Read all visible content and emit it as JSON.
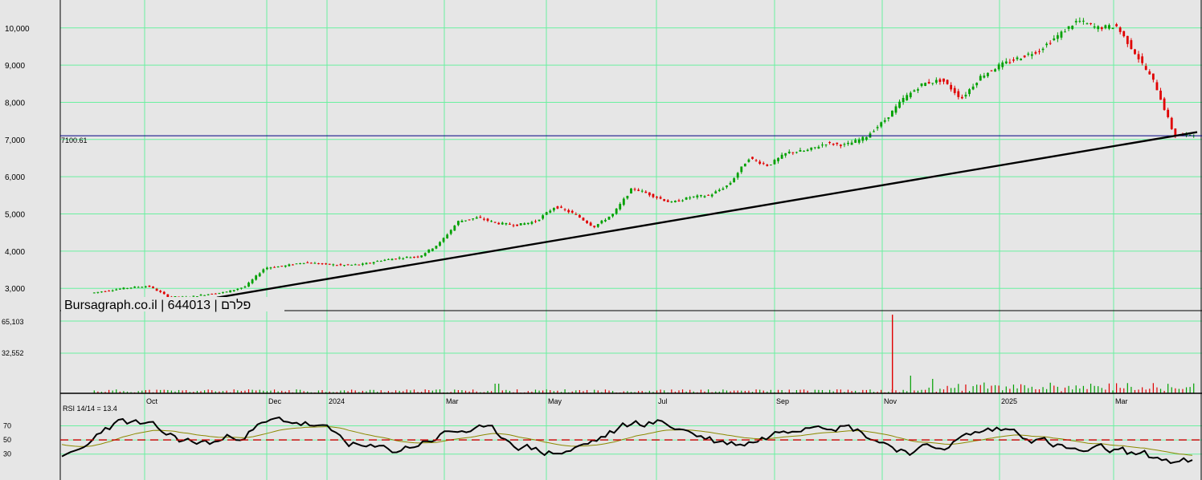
{
  "watermark": "Bursagraph.co.il | 644013 | פלרם",
  "price_panel": {
    "y_ticks": [
      "10,000",
      "9,000",
      "8,000",
      "7,000",
      "6,000",
      "5,000",
      "4,000",
      "3,000"
    ],
    "y_values": [
      10000,
      9000,
      8000,
      7000,
      6000,
      5000,
      4000,
      3000
    ],
    "hline_label": "7100.61",
    "hline_value": 7100.61
  },
  "volume_panel": {
    "y_ticks": [
      "65,103",
      "32,552"
    ],
    "y_values": [
      65103,
      32552
    ]
  },
  "x_axis": {
    "labels": [
      "Oct",
      "Dec",
      "2024",
      "Mar",
      "May",
      "Jul",
      "Sep",
      "Nov",
      "2025",
      "Mar"
    ]
  },
  "rsi_panel": {
    "title": "RSI 14/14 = 13.4",
    "y_ticks": [
      "70",
      "50",
      "30"
    ],
    "y_values": [
      70,
      50,
      30
    ],
    "signal_level": 50
  },
  "colors": {
    "background": "#e6e6e6",
    "grid": "#6af0a0",
    "up": "#00a000",
    "down": "#e00000",
    "hline": "#000080",
    "trendline": "#000000",
    "rsi": "#000000",
    "rsi_signal": "#8a8a00",
    "rsi_level": "#cc0000"
  },
  "chart_data": {
    "type": "line",
    "series": [
      {
        "values": [
          2870,
          2950,
          3020,
          3060,
          2780,
          2760,
          2840,
          2900,
          3050,
          3550,
          3600,
          3700,
          3650,
          3620,
          3640,
          3750,
          3820,
          3860,
          4200,
          4800,
          4900,
          4750,
          4700,
          4800,
          5200,
          5000,
          4650,
          5000,
          5700,
          5500,
          5300,
          5450,
          5500,
          5800,
          6500,
          6300,
          6650,
          6700,
          6900,
          6850,
          7050,
          7500,
          8100,
          8500,
          8600,
          8100,
          8700,
          9000,
          9200,
          9400,
          9800,
          10200,
          10000,
          10050,
          9300,
          8500,
          7100,
          7150
        ]
      }
    ],
    "trendline": {
      "from": 2750,
      "to": 7200
    },
    "ylim": [
      2400,
      10750
    ],
    "grid": true
  }
}
